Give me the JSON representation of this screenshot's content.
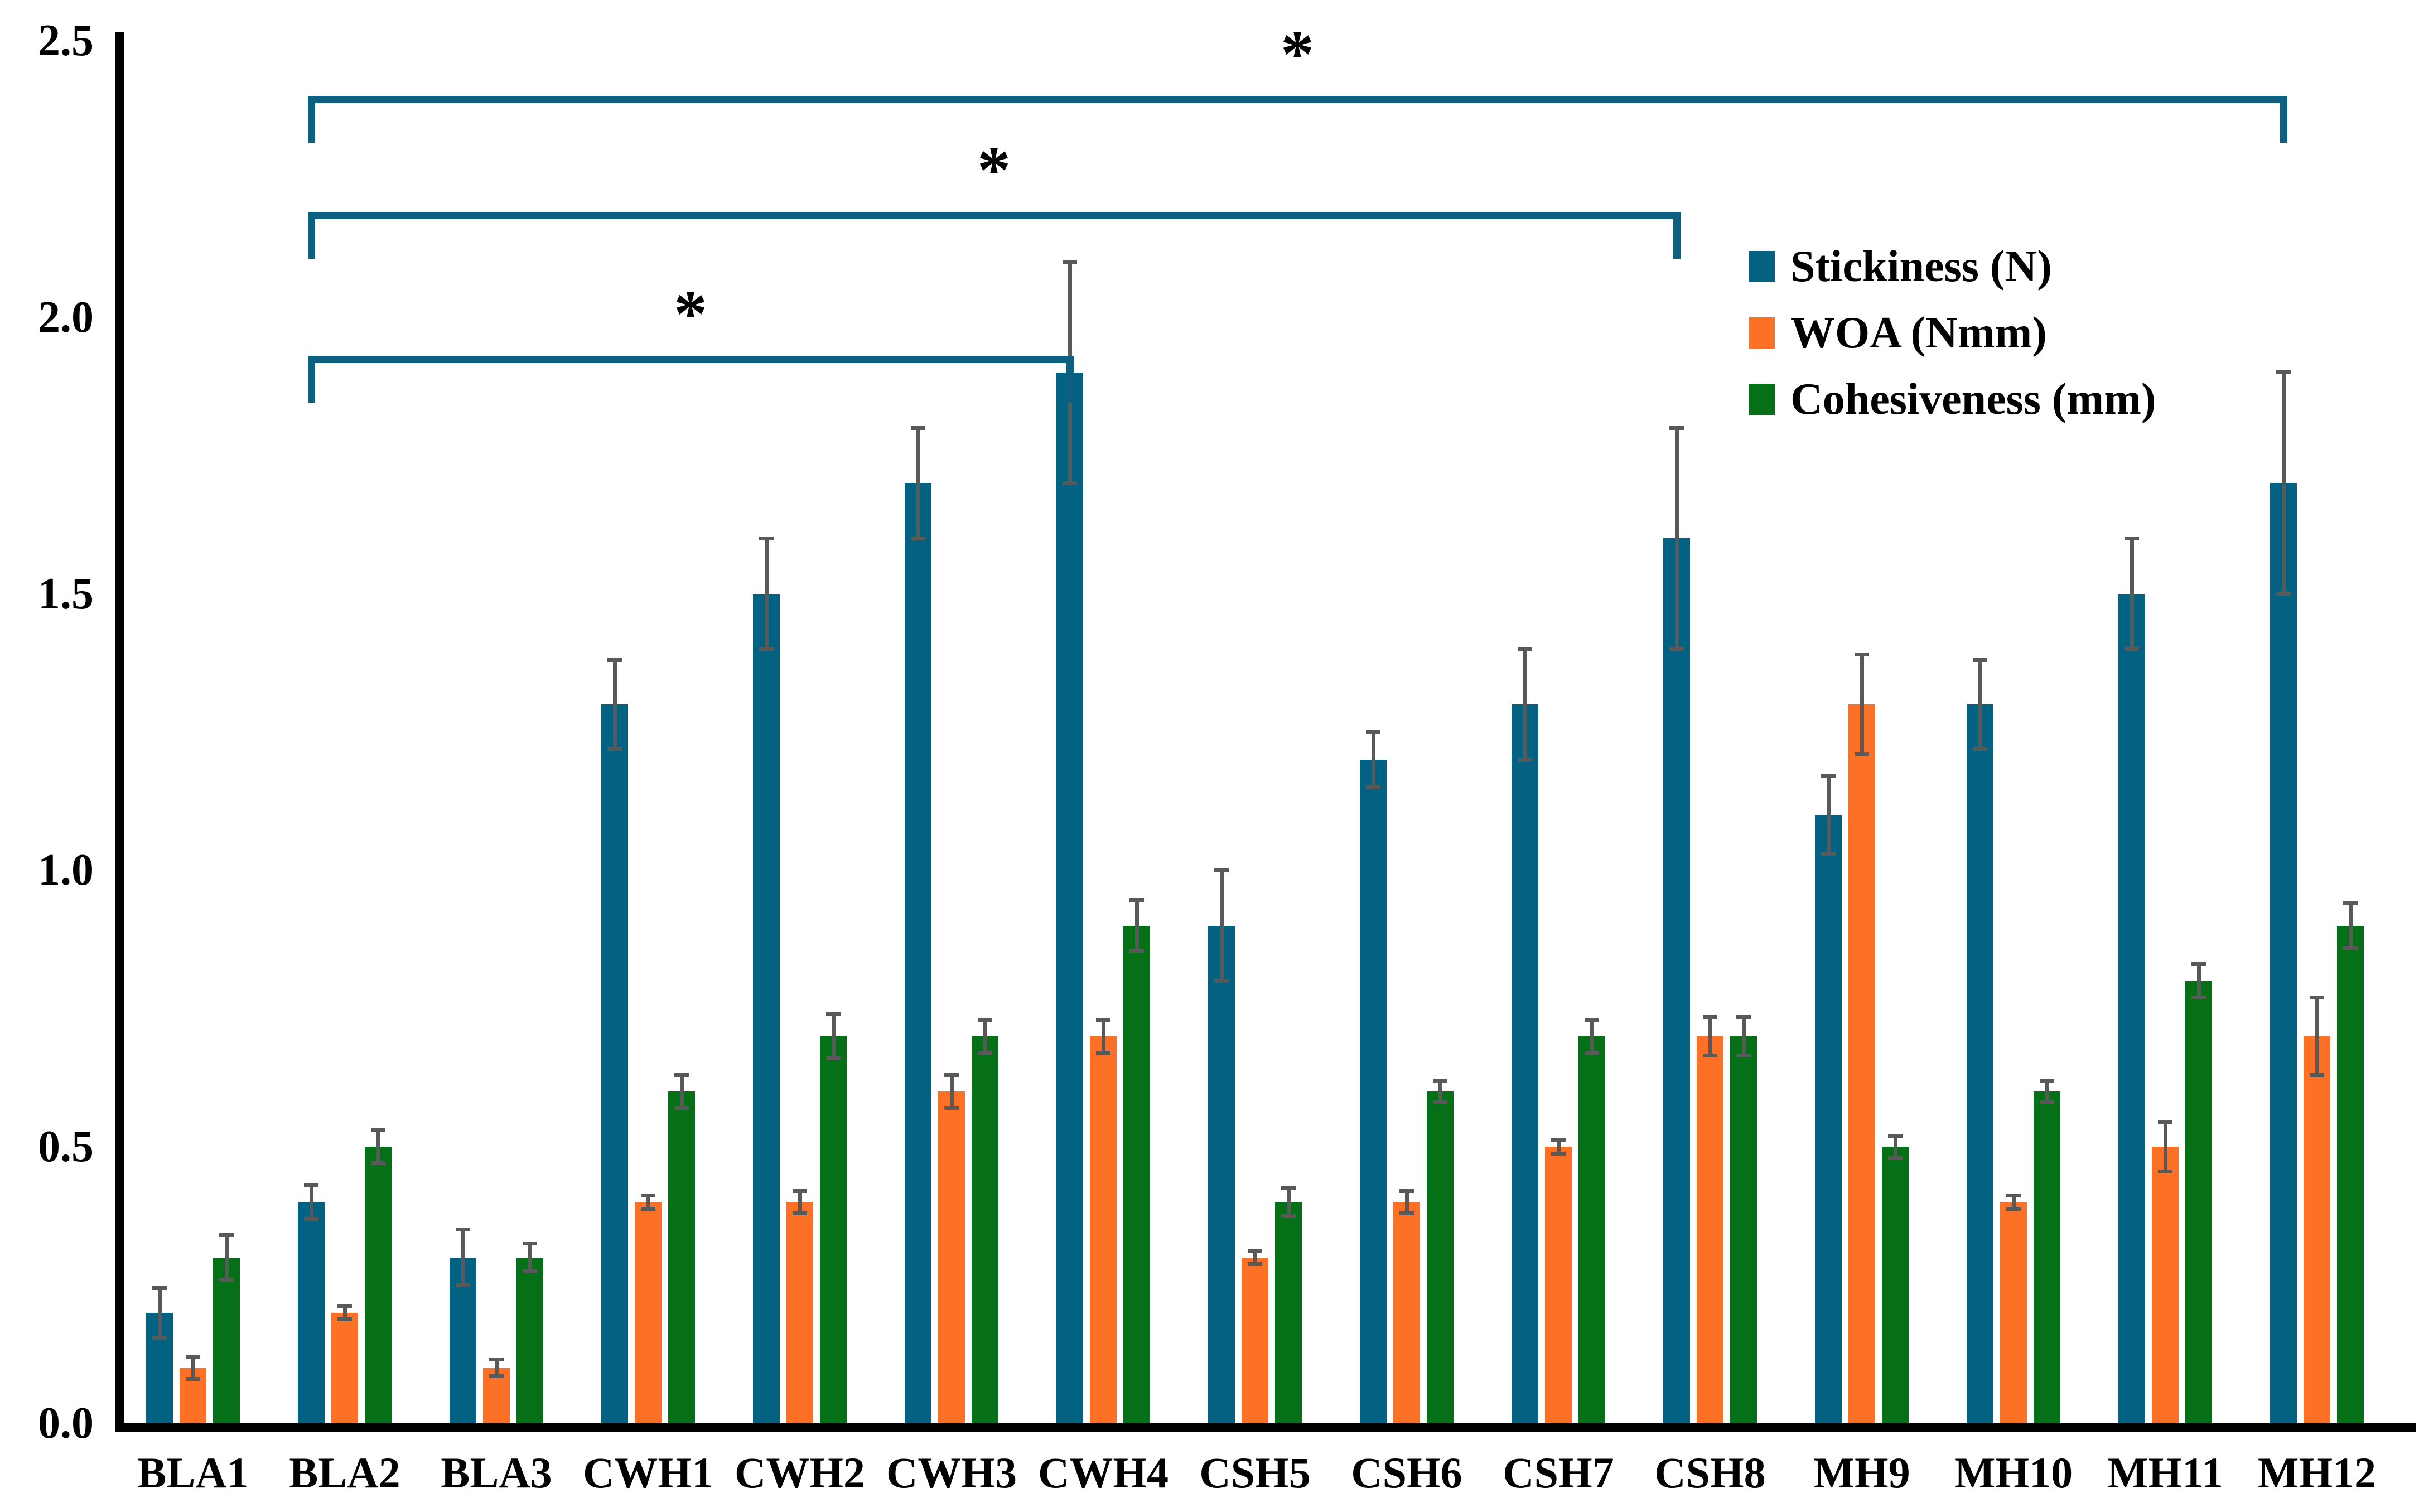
{
  "chart_data": {
    "type": "bar",
    "title": "",
    "xlabel": "",
    "ylabel": "",
    "categories": [
      "BLA1",
      "BLA2",
      "BLA3",
      "CWH1",
      "CWH2",
      "CWH3",
      "CWH4",
      "CSH5",
      "CSH6",
      "CSH7",
      "CSH8",
      "MH9",
      "MH10",
      "MH11",
      "MH12"
    ],
    "series": [
      {
        "name": "Stickiness (N)",
        "key": "stickiness",
        "color": "#036181",
        "values": [
          0.2,
          0.4,
          0.3,
          1.3,
          1.5,
          1.7,
          1.9,
          0.9,
          1.2,
          1.3,
          1.6,
          1.1,
          1.3,
          1.5,
          1.7
        ],
        "errors": [
          0.045,
          0.03,
          0.05,
          0.08,
          0.1,
          0.1,
          0.2,
          0.1,
          0.05,
          0.1,
          0.2,
          0.07,
          0.08,
          0.1,
          0.2
        ]
      },
      {
        "name": "WOA (Nmm)",
        "key": "woa",
        "color": "#FC7125",
        "values": [
          0.1,
          0.2,
          0.1,
          0.4,
          0.4,
          0.6,
          0.7,
          0.3,
          0.4,
          0.5,
          0.7,
          1.3,
          0.4,
          0.5,
          0.7
        ],
        "errors": [
          0.02,
          0.012,
          0.015,
          0.012,
          0.02,
          0.03,
          0.03,
          0.012,
          0.02,
          0.012,
          0.035,
          0.09,
          0.012,
          0.045,
          0.07
        ]
      },
      {
        "name": "Cohesiveness (mm)",
        "key": "cohesiveness",
        "color": "#067018",
        "values": [
          0.3,
          0.5,
          0.3,
          0.6,
          0.7,
          0.7,
          0.9,
          0.4,
          0.6,
          0.7,
          0.7,
          0.5,
          0.6,
          0.8,
          0.9
        ],
        "errors": [
          0.04,
          0.03,
          0.025,
          0.03,
          0.04,
          0.03,
          0.045,
          0.025,
          0.02,
          0.03,
          0.035,
          0.02,
          0.02,
          0.03,
          0.04
        ]
      }
    ],
    "ylim": [
      0,
      2.5
    ],
    "yticks": [
      "0.0",
      "0.5",
      "1.0",
      "1.5",
      "2.0",
      "2.5"
    ],
    "grid": false,
    "legend_position": "upper-right",
    "error_bar_color": "#595959",
    "axis_color": "#000000",
    "bracket_color": "#0D6080",
    "significance_brackets": [
      {
        "from": "BLA2",
        "to": "CWH4",
        "height": 1.93,
        "label": "*"
      },
      {
        "from": "BLA2",
        "to": "CSH8",
        "height": 2.19,
        "label": "*"
      },
      {
        "from": "BLA2",
        "to": "MH12",
        "height": 2.4,
        "label": "*"
      }
    ]
  }
}
